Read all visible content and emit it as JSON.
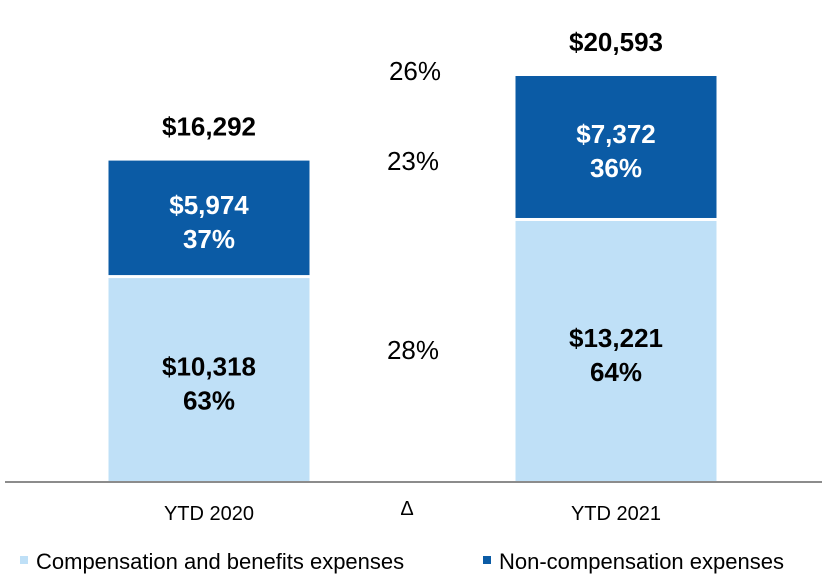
{
  "chart_data": {
    "type": "bar",
    "stacked": true,
    "categories": [
      "YTD 2020",
      "YTD 2021"
    ],
    "middle_tick": "Δ",
    "series": [
      {
        "name": "Compensation and benefits expenses",
        "color": "#bfe0f7",
        "label_color": "#000000",
        "values": [
          10318,
          13221
        ],
        "value_labels": [
          "$10,318",
          "$13,221"
        ],
        "pct_labels": [
          "63%",
          "64%"
        ]
      },
      {
        "name": "Non-compensation expenses",
        "color": "#0b5ba5",
        "label_color": "#ffffff",
        "values": [
          5974,
          7372
        ],
        "value_labels": [
          "$5,974",
          "$7,372"
        ],
        "pct_labels": [
          "37%",
          "36%"
        ]
      }
    ],
    "totals": [
      16292,
      20593
    ],
    "total_labels": [
      "$16,292",
      "$20,593"
    ],
    "changes": {
      "total": "26%",
      "non_compensation": "23%",
      "compensation": "28%"
    },
    "ylim": [
      0,
      20593
    ],
    "grid": false,
    "legend_position": "bottom"
  }
}
